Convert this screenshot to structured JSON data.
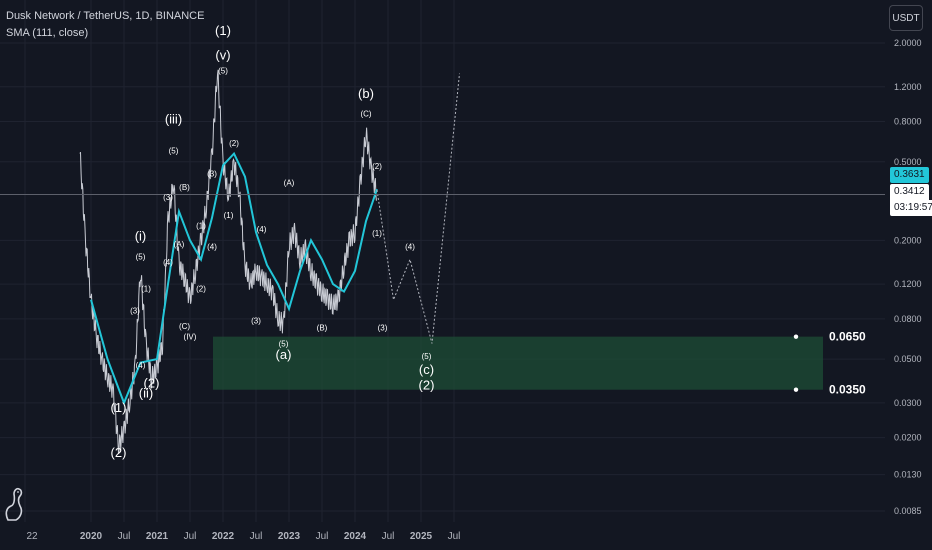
{
  "header": {
    "symbol_line": "Dusk Network / TetherUS, 1D, BINANCE",
    "indicator_line": "SMA (111, close)"
  },
  "currency_button": "USDT",
  "price_badges": {
    "sma_value": "0.3631",
    "last_price": "0.3412",
    "countdown": "03:19:57"
  },
  "colors": {
    "background": "#131722",
    "sma_line": "#22c6d8",
    "zone_fill": "#1e4d35",
    "text": "#d1d4dc"
  },
  "icons": {
    "logo": "tradingview-dino-logo"
  },
  "chart_data": {
    "type": "line",
    "scale": "log",
    "y_ticks": [
      "2.0000",
      "1.2000",
      "0.8000",
      "0.5000",
      "0.3412",
      "0.2000",
      "0.1200",
      "0.0800",
      "0.0500",
      "0.0300",
      "0.0200",
      "0.0130",
      "0.0085"
    ],
    "x_ticks": [
      "22",
      "2020",
      "Jul",
      "2021",
      "Jul",
      "2022",
      "Jul",
      "2023",
      "Jul",
      "2024",
      "Jul",
      "2025",
      "Jul"
    ],
    "zone": {
      "from": 0.035,
      "to": 0.065,
      "labels": [
        "0.0650",
        "0.0350"
      ]
    },
    "series": [
      {
        "name": "Dusk Network / TetherUS",
        "x": [
          "2019-11",
          "2019-12",
          "2020-01",
          "2020-02",
          "2020-03",
          "2020-04",
          "2020-05",
          "2020-06",
          "2020-07",
          "2020-08",
          "2020-09",
          "2020-10",
          "2020-11",
          "2020-12",
          "2021-01",
          "2021-02",
          "2021-03",
          "2021-04",
          "2021-05",
          "2021-06",
          "2021-07",
          "2021-08",
          "2021-09",
          "2021-10",
          "2021-11",
          "2021-12",
          "2022-01",
          "2022-02",
          "2022-03",
          "2022-04",
          "2022-05",
          "2022-06",
          "2022-07",
          "2022-08",
          "2022-09",
          "2022-10",
          "2022-11",
          "2022-12",
          "2023-01",
          "2023-02",
          "2023-03",
          "2023-04",
          "2023-05",
          "2023-06",
          "2023-07",
          "2023-08",
          "2023-09",
          "2023-10",
          "2023-11",
          "2023-12",
          "2024-01",
          "2024-02",
          "2024-03",
          "2024-04",
          "2024-05"
        ],
        "y": [
          0.55,
          0.2,
          0.1,
          0.065,
          0.05,
          0.04,
          0.035,
          0.018,
          0.022,
          0.03,
          0.045,
          0.14,
          0.06,
          0.04,
          0.045,
          0.06,
          0.25,
          0.4,
          0.15,
          0.13,
          0.1,
          0.14,
          0.2,
          0.3,
          0.55,
          1.45,
          0.5,
          0.33,
          0.5,
          0.34,
          0.15,
          0.12,
          0.14,
          0.13,
          0.12,
          0.11,
          0.08,
          0.075,
          0.19,
          0.22,
          0.16,
          0.18,
          0.14,
          0.12,
          0.11,
          0.1,
          0.095,
          0.1,
          0.15,
          0.2,
          0.22,
          0.4,
          0.7,
          0.45,
          0.34
        ]
      },
      {
        "name": "SMA (111, close)",
        "x": [
          "2020-01",
          "2020-04",
          "2020-07",
          "2020-10",
          "2021-01",
          "2021-03",
          "2021-05",
          "2021-07",
          "2021-09",
          "2021-11",
          "2022-01",
          "2022-03",
          "2022-05",
          "2022-07",
          "2022-09",
          "2022-11",
          "2023-01",
          "2023-03",
          "2023-05",
          "2023-07",
          "2023-09",
          "2023-11",
          "2024-01",
          "2024-03",
          "2024-05"
        ],
        "y": [
          0.1,
          0.05,
          0.03,
          0.048,
          0.05,
          0.12,
          0.28,
          0.2,
          0.16,
          0.26,
          0.48,
          0.55,
          0.42,
          0.22,
          0.15,
          0.12,
          0.09,
          0.14,
          0.2,
          0.16,
          0.12,
          0.11,
          0.14,
          0.25,
          0.363
        ]
      },
      {
        "name": "projection",
        "x": [
          "2024-05",
          "2024-08",
          "2024-11",
          "2025-03",
          "2025-08"
        ],
        "y": [
          0.36,
          0.1,
          0.16,
          0.06,
          1.4
        ]
      }
    ],
    "annotations": [
      {
        "text": "(1)",
        "at": [
          "2022-01",
          2.2
        ]
      },
      {
        "text": "(v)",
        "at": [
          "2022-01",
          1.65
        ]
      },
      {
        "text": "(5)",
        "at": [
          "2022-01",
          1.4
        ]
      },
      {
        "text": "(iii)",
        "at": [
          "2021-04",
          0.78
        ]
      },
      {
        "text": "(5)",
        "at": [
          "2021-04",
          0.55
        ]
      },
      {
        "text": "(i)",
        "at": [
          "2020-10",
          0.2
        ]
      },
      {
        "text": "(5)",
        "at": [
          "2020-10",
          0.16
        ]
      },
      {
        "text": "(ii)",
        "at": [
          "2020-11",
          0.032
        ]
      },
      {
        "text": "(2)",
        "at": [
          "2020-12",
          0.036
        ]
      },
      {
        "text": "(1)",
        "at": [
          "2020-11",
          0.11
        ]
      },
      {
        "text": "(3)",
        "at": [
          "2020-09",
          0.085
        ]
      },
      {
        "text": "(4)",
        "at": [
          "2020-10",
          0.045
        ]
      },
      {
        "text": "(1)",
        "at": [
          "2020-06",
          0.027
        ]
      },
      {
        "text": "(2)",
        "at": [
          "2020-06",
          0.016
        ]
      },
      {
        "text": "(3)",
        "at": [
          "2021-03",
          0.32
        ]
      },
      {
        "text": "(4)",
        "at": [
          "2021-03",
          0.15
        ]
      },
      {
        "text": "(A)",
        "at": [
          "2021-05",
          0.185
        ]
      },
      {
        "text": "(B)",
        "at": [
          "2021-06",
          0.36
        ]
      },
      {
        "text": "(C)",
        "at": [
          "2021-06",
          0.071
        ]
      },
      {
        "text": "(IV)",
        "at": [
          "2021-07",
          0.063
        ]
      },
      {
        "text": "(1)",
        "at": [
          "2021-09",
          0.23
        ]
      },
      {
        "text": "(2)",
        "at": [
          "2021-09",
          0.11
        ]
      },
      {
        "text": "(3)",
        "at": [
          "2021-11",
          0.42
        ]
      },
      {
        "text": "(4)",
        "at": [
          "2021-11",
          0.18
        ]
      },
      {
        "text": "(1)",
        "at": [
          "2022-02",
          0.26
        ]
      },
      {
        "text": "(2)",
        "at": [
          "2022-03",
          0.6
        ]
      },
      {
        "text": "(3)",
        "at": [
          "2022-07",
          0.076
        ]
      },
      {
        "text": "(4)",
        "at": [
          "2022-08",
          0.22
        ]
      },
      {
        "text": "(A)",
        "at": [
          "2023-01",
          0.38
        ]
      },
      {
        "text": "(5)",
        "at": [
          "2022-12",
          0.058
        ]
      },
      {
        "text": "(a)",
        "at": [
          "2022-12",
          0.05
        ]
      },
      {
        "text": "(B)",
        "at": [
          "2023-07",
          0.07
        ]
      },
      {
        "text": "(b)",
        "at": [
          "2024-03",
          1.05
        ]
      },
      {
        "text": "(C)",
        "at": [
          "2024-03",
          0.85
        ]
      },
      {
        "text": "(2)",
        "at": [
          "2024-05",
          0.46
        ]
      },
      {
        "text": "(1)",
        "at": [
          "2024-05",
          0.21
        ]
      },
      {
        "text": "(3)",
        "at": [
          "2024-06",
          0.07
        ]
      },
      {
        "text": "(4)",
        "at": [
          "2024-11",
          0.18
        ]
      },
      {
        "text": "(5)",
        "at": [
          "2025-02",
          0.05
        ]
      },
      {
        "text": "(c)",
        "at": [
          "2025-02",
          0.042
        ]
      },
      {
        "text": "(2)",
        "at": [
          "2025-02",
          0.035
        ]
      }
    ]
  }
}
